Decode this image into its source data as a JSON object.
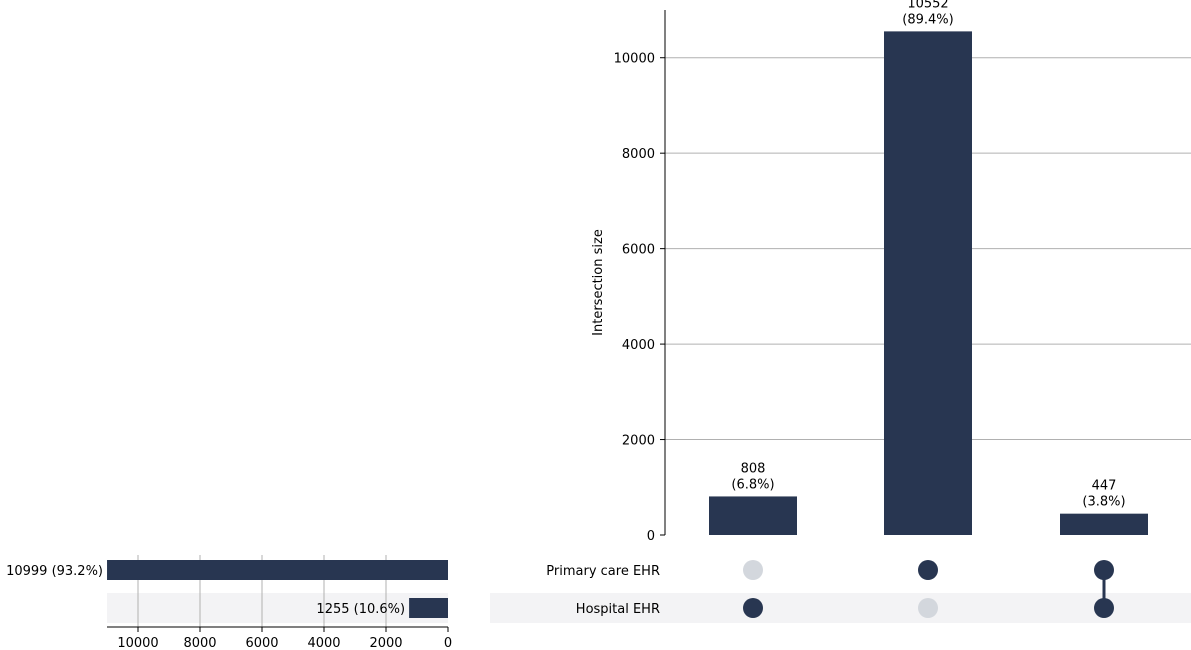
{
  "chart_data": {
    "type": "upset",
    "colors": {
      "bar": "#283651",
      "dot_active": "#283651",
      "dot_inactive": "#d3d7dd",
      "row_shade": "#f3f3f5",
      "grid": "#b0b0b0"
    },
    "intersection_axis": {
      "label": "Intersection size",
      "ylim": [
        0,
        11000
      ],
      "ticks": [
        0,
        2000,
        4000,
        6000,
        8000,
        10000
      ],
      "grid": true
    },
    "sets": [
      {
        "name": "Primary care EHR",
        "size": 10999,
        "label": "10999 (93.2%)"
      },
      {
        "name": "Hospital EHR",
        "size": 1255,
        "label": "1255 (10.6%)"
      }
    ],
    "set_size_axis": {
      "xlim": [
        11000,
        0
      ],
      "ticks": [
        10000,
        8000,
        6000,
        4000,
        2000,
        0
      ],
      "grid": true
    },
    "intersections": [
      {
        "value": 808,
        "value_label": "808",
        "percent_label": "(6.8%)",
        "membership": [
          false,
          true
        ]
      },
      {
        "value": 10552,
        "value_label": "10552",
        "percent_label": "(89.4%)",
        "membership": [
          true,
          false
        ]
      },
      {
        "value": 447,
        "value_label": "447",
        "percent_label": "(3.8%)",
        "membership": [
          true,
          true
        ]
      }
    ]
  }
}
